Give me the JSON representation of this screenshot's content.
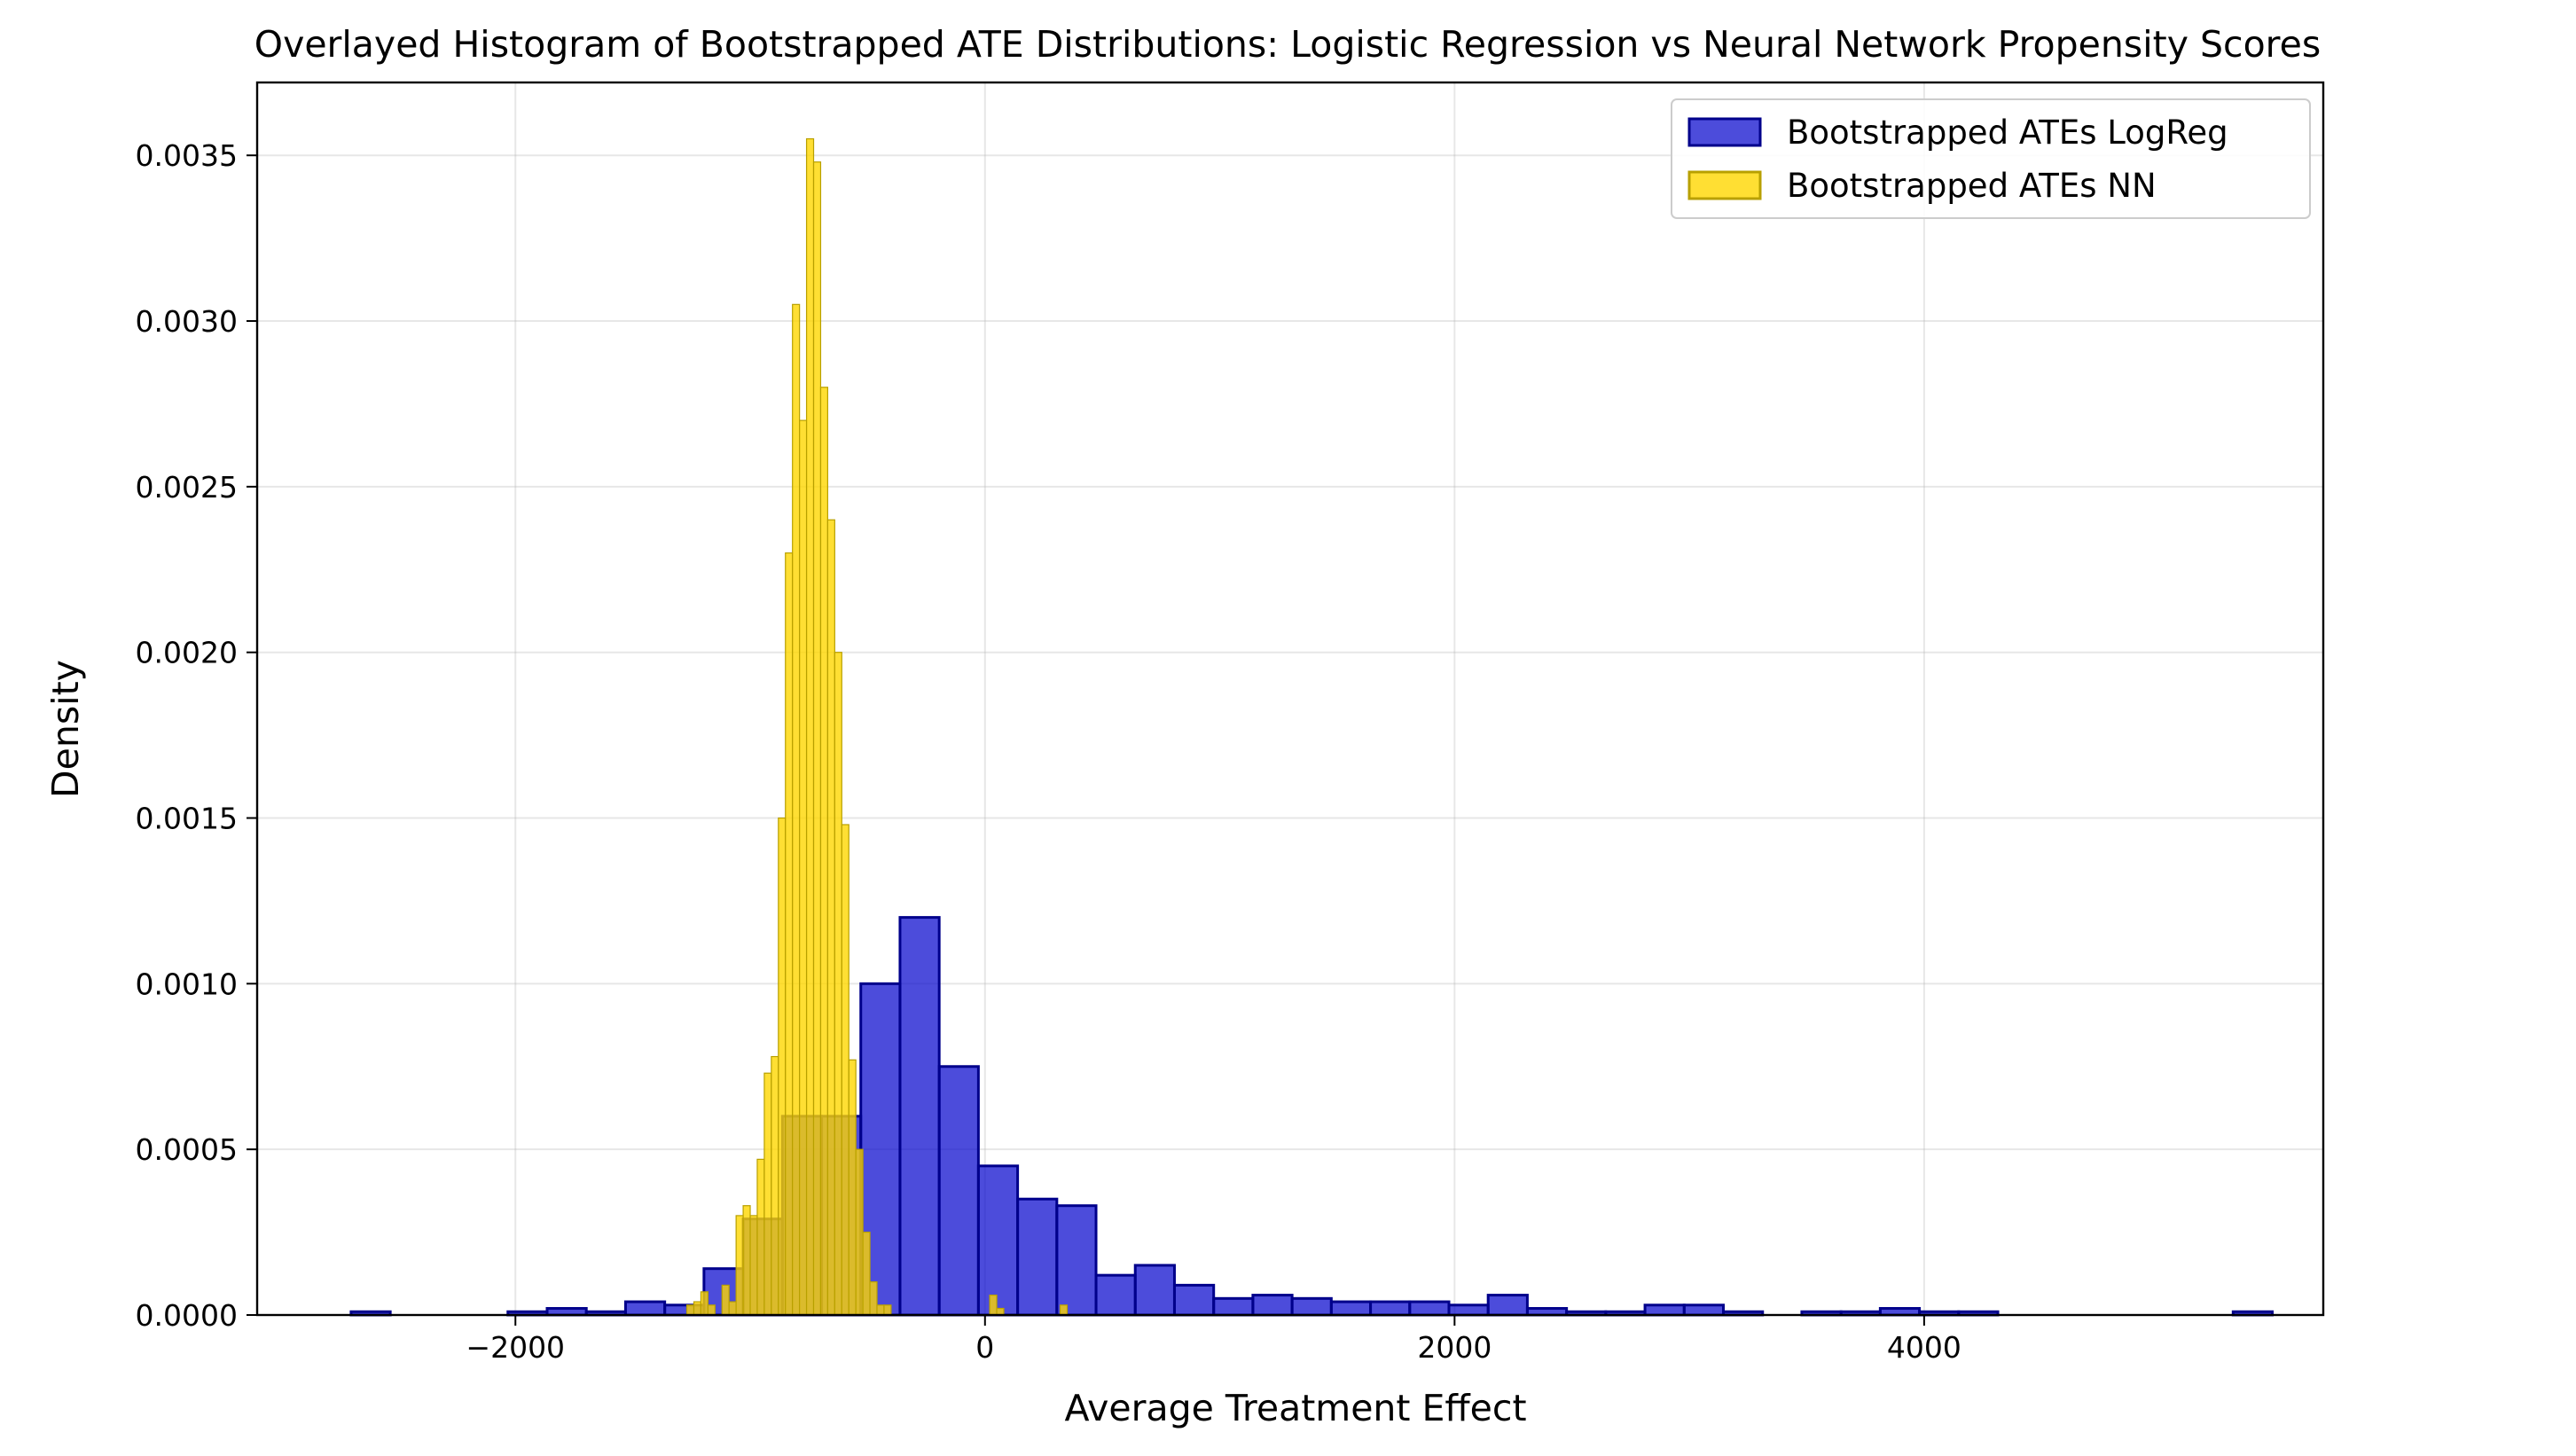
{
  "chart_data": {
    "type": "histogram",
    "title": "Overlayed Histogram of Bootstrapped ATE Distributions: Logistic Regression vs Neural Network Propensity Scores",
    "xlabel": "Average Treatment Effect",
    "ylabel": "Density",
    "xlim": [
      -3100,
      5700
    ],
    "ylim": [
      0,
      0.00372
    ],
    "xticks": [
      -2000,
      0,
      2000,
      4000
    ],
    "yticks": [
      0.0,
      0.0005,
      0.001,
      0.0015,
      0.002,
      0.0025,
      0.003,
      0.0035
    ],
    "grid": true,
    "legend_position": "top-right",
    "series": [
      {
        "name": "Bootstrapped ATEs LogReg",
        "fill": "#0000cc",
        "fill_opacity": 0.7,
        "edge": "#00008b",
        "bin_edges": [
          -2700,
          -2533,
          -2366,
          -2199,
          -2032,
          -1865,
          -1698,
          -1531,
          -1364,
          -1197,
          -1030,
          -863,
          -696,
          -529,
          -362,
          -195,
          -28,
          139,
          306,
          473,
          640,
          807,
          974,
          1141,
          1308,
          1475,
          1642,
          1809,
          1976,
          2143,
          2310,
          2477,
          2644,
          2811,
          2978,
          3145,
          3312,
          3479,
          3646,
          3813,
          3980,
          4147,
          4314,
          4481,
          4648,
          4815,
          4982,
          5149,
          5316,
          5483
        ],
        "density": [
          1e-05,
          0,
          0,
          0,
          1e-05,
          2e-05,
          1e-05,
          4e-05,
          3e-05,
          0.00014,
          0.00029,
          0.0006,
          0.0006,
          0.001,
          0.0012,
          0.00075,
          0.00045,
          0.00035,
          0.00033,
          0.00012,
          0.00015,
          9e-05,
          5e-05,
          6e-05,
          5e-05,
          4e-05,
          4e-05,
          4e-05,
          3e-05,
          6e-05,
          2e-05,
          1e-05,
          1e-05,
          3e-05,
          3e-05,
          1e-05,
          0,
          1e-05,
          1e-05,
          2e-05,
          1e-05,
          1e-05,
          0,
          0,
          0,
          0,
          0,
          0,
          1e-05
        ]
      },
      {
        "name": "Bootstrapped ATEs NN",
        "fill": "#ffd700",
        "fill_opacity": 0.8,
        "edge": "#b8a000",
        "bin_edges": [
          -1300,
          -1270,
          -1240,
          -1210,
          -1180,
          -1150,
          -1120,
          -1090,
          -1060,
          -1030,
          -1000,
          -970,
          -940,
          -910,
          -880,
          -850,
          -820,
          -790,
          -760,
          -730,
          -700,
          -670,
          -640,
          -610,
          -580,
          -550,
          -520,
          -490,
          -460,
          -430,
          -400,
          -370,
          -340,
          -310,
          -280,
          -250,
          -220,
          -190,
          -160,
          -130,
          -100,
          -70,
          -40,
          -10,
          20,
          50,
          80,
          110,
          140,
          170,
          200,
          230,
          260,
          290,
          320,
          350,
          380
        ],
        "density": [
          0,
          3e-05,
          4e-05,
          7e-05,
          3e-05,
          0,
          9e-05,
          4e-05,
          0.0003,
          0.00033,
          0.0003,
          0.00047,
          0.00073,
          0.00078,
          0.0015,
          0.0023,
          0.00305,
          0.0027,
          0.00355,
          0.00348,
          0.0028,
          0.0024,
          0.002,
          0.00148,
          0.00077,
          0.0005,
          0.00025,
          0.0001,
          3e-05,
          3e-05,
          0,
          0,
          0,
          0,
          0,
          0,
          0,
          0,
          0,
          0,
          0,
          0,
          0,
          0,
          6e-05,
          2e-05,
          0,
          0,
          0,
          0,
          0,
          0,
          0,
          0,
          3e-05,
          0
        ]
      }
    ]
  }
}
